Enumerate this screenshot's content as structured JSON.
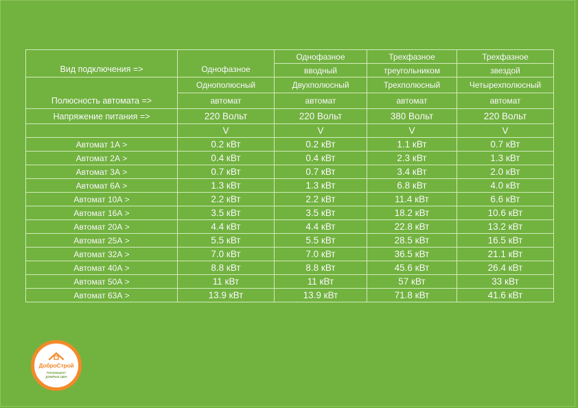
{
  "table": {
    "row_connection": {
      "label": "Вид подключения =>",
      "cols": [
        "Однофазное",
        "Однофазное",
        "Трехфазное",
        "Трехфазное"
      ],
      "cols_sub": [
        "",
        "вводный",
        "треугольником",
        "звездой"
      ]
    },
    "row_poles": {
      "label": "Полюсность автомата =>",
      "cols": [
        "Однополюсный",
        "Двухполюсный",
        "Трехполюсный",
        "Четырехполюсный"
      ],
      "cols_sub": [
        "автомат",
        "автомат",
        "автомат",
        "автомат"
      ]
    },
    "row_voltage": {
      "label": "Напряжение питания =>",
      "cols": [
        "220 Вольт",
        "220 Вольт",
        "380 Вольт",
        "220 Вольт"
      ]
    },
    "row_arrows": [
      "V",
      "V",
      "V",
      "V"
    ],
    "rows": [
      {
        "label": "Автомат 1А >",
        "values": [
          "0.2 кВт",
          "0.2 кВт",
          "1.1 кВт",
          "0.7 кВт"
        ]
      },
      {
        "label": "Автомат 2А >",
        "values": [
          "0.4 кВт",
          "0.4 кВт",
          "2.3 кВт",
          "1.3 кВт"
        ]
      },
      {
        "label": "Автомат 3А >",
        "values": [
          "0.7 кВт",
          "0.7 кВт",
          "3.4 кВт",
          "2.0 кВт"
        ]
      },
      {
        "label": "Автомат 6А >",
        "values": [
          "1.3 кВт",
          "1.3 кВт",
          "6.8 кВт",
          "4.0 кВт"
        ]
      },
      {
        "label": "Автомат 10А >",
        "values": [
          "2.2 кВт",
          "2.2 кВт",
          "11.4 кВт",
          "6.6 кВт"
        ]
      },
      {
        "label": "Автомат 16А >",
        "values": [
          "3.5 кВт",
          "3.5 кВт",
          "18.2 кВт",
          "10.6 кВт"
        ]
      },
      {
        "label": "Автомат 20А >",
        "values": [
          "4.4 кВт",
          "4.4 кВт",
          "22.8 кВт",
          "13.2 кВт"
        ]
      },
      {
        "label": "Автомат 25А >",
        "values": [
          "5.5 кВт",
          "5.5 кВт",
          "28.5 кВт",
          "16.5 кВт"
        ]
      },
      {
        "label": "Автомат 32А >",
        "values": [
          "7.0 кВт",
          "7.0 кВт",
          "36.5 кВт",
          "21.1 кВт"
        ]
      },
      {
        "label": "Автомат 40А >",
        "values": [
          "8.8 кВт",
          "8.8 кВт",
          "45.6 кВт",
          "26.4 кВт"
        ]
      },
      {
        "label": "Автомат 50А >",
        "values": [
          "11 кВт",
          "11 кВт",
          "57 кВт",
          "33 кВт"
        ]
      },
      {
        "label": "Автомат 63А >",
        "values": [
          "13.9 кВт",
          "13.9 кВт",
          "71.8 кВт",
          "41.6 кВт"
        ]
      }
    ]
  },
  "logo": {
    "name": "ДоброСтрой",
    "tagline_1": "Гипермаркет",
    "tagline_2": "ДОБРЫХ ЦЕН",
    "ring_color": "#f28a2a",
    "icon": "house-icon"
  },
  "colors": {
    "background": "#72b33f",
    "grid_lines": "#d2ebbd",
    "text": "#ffffff"
  }
}
